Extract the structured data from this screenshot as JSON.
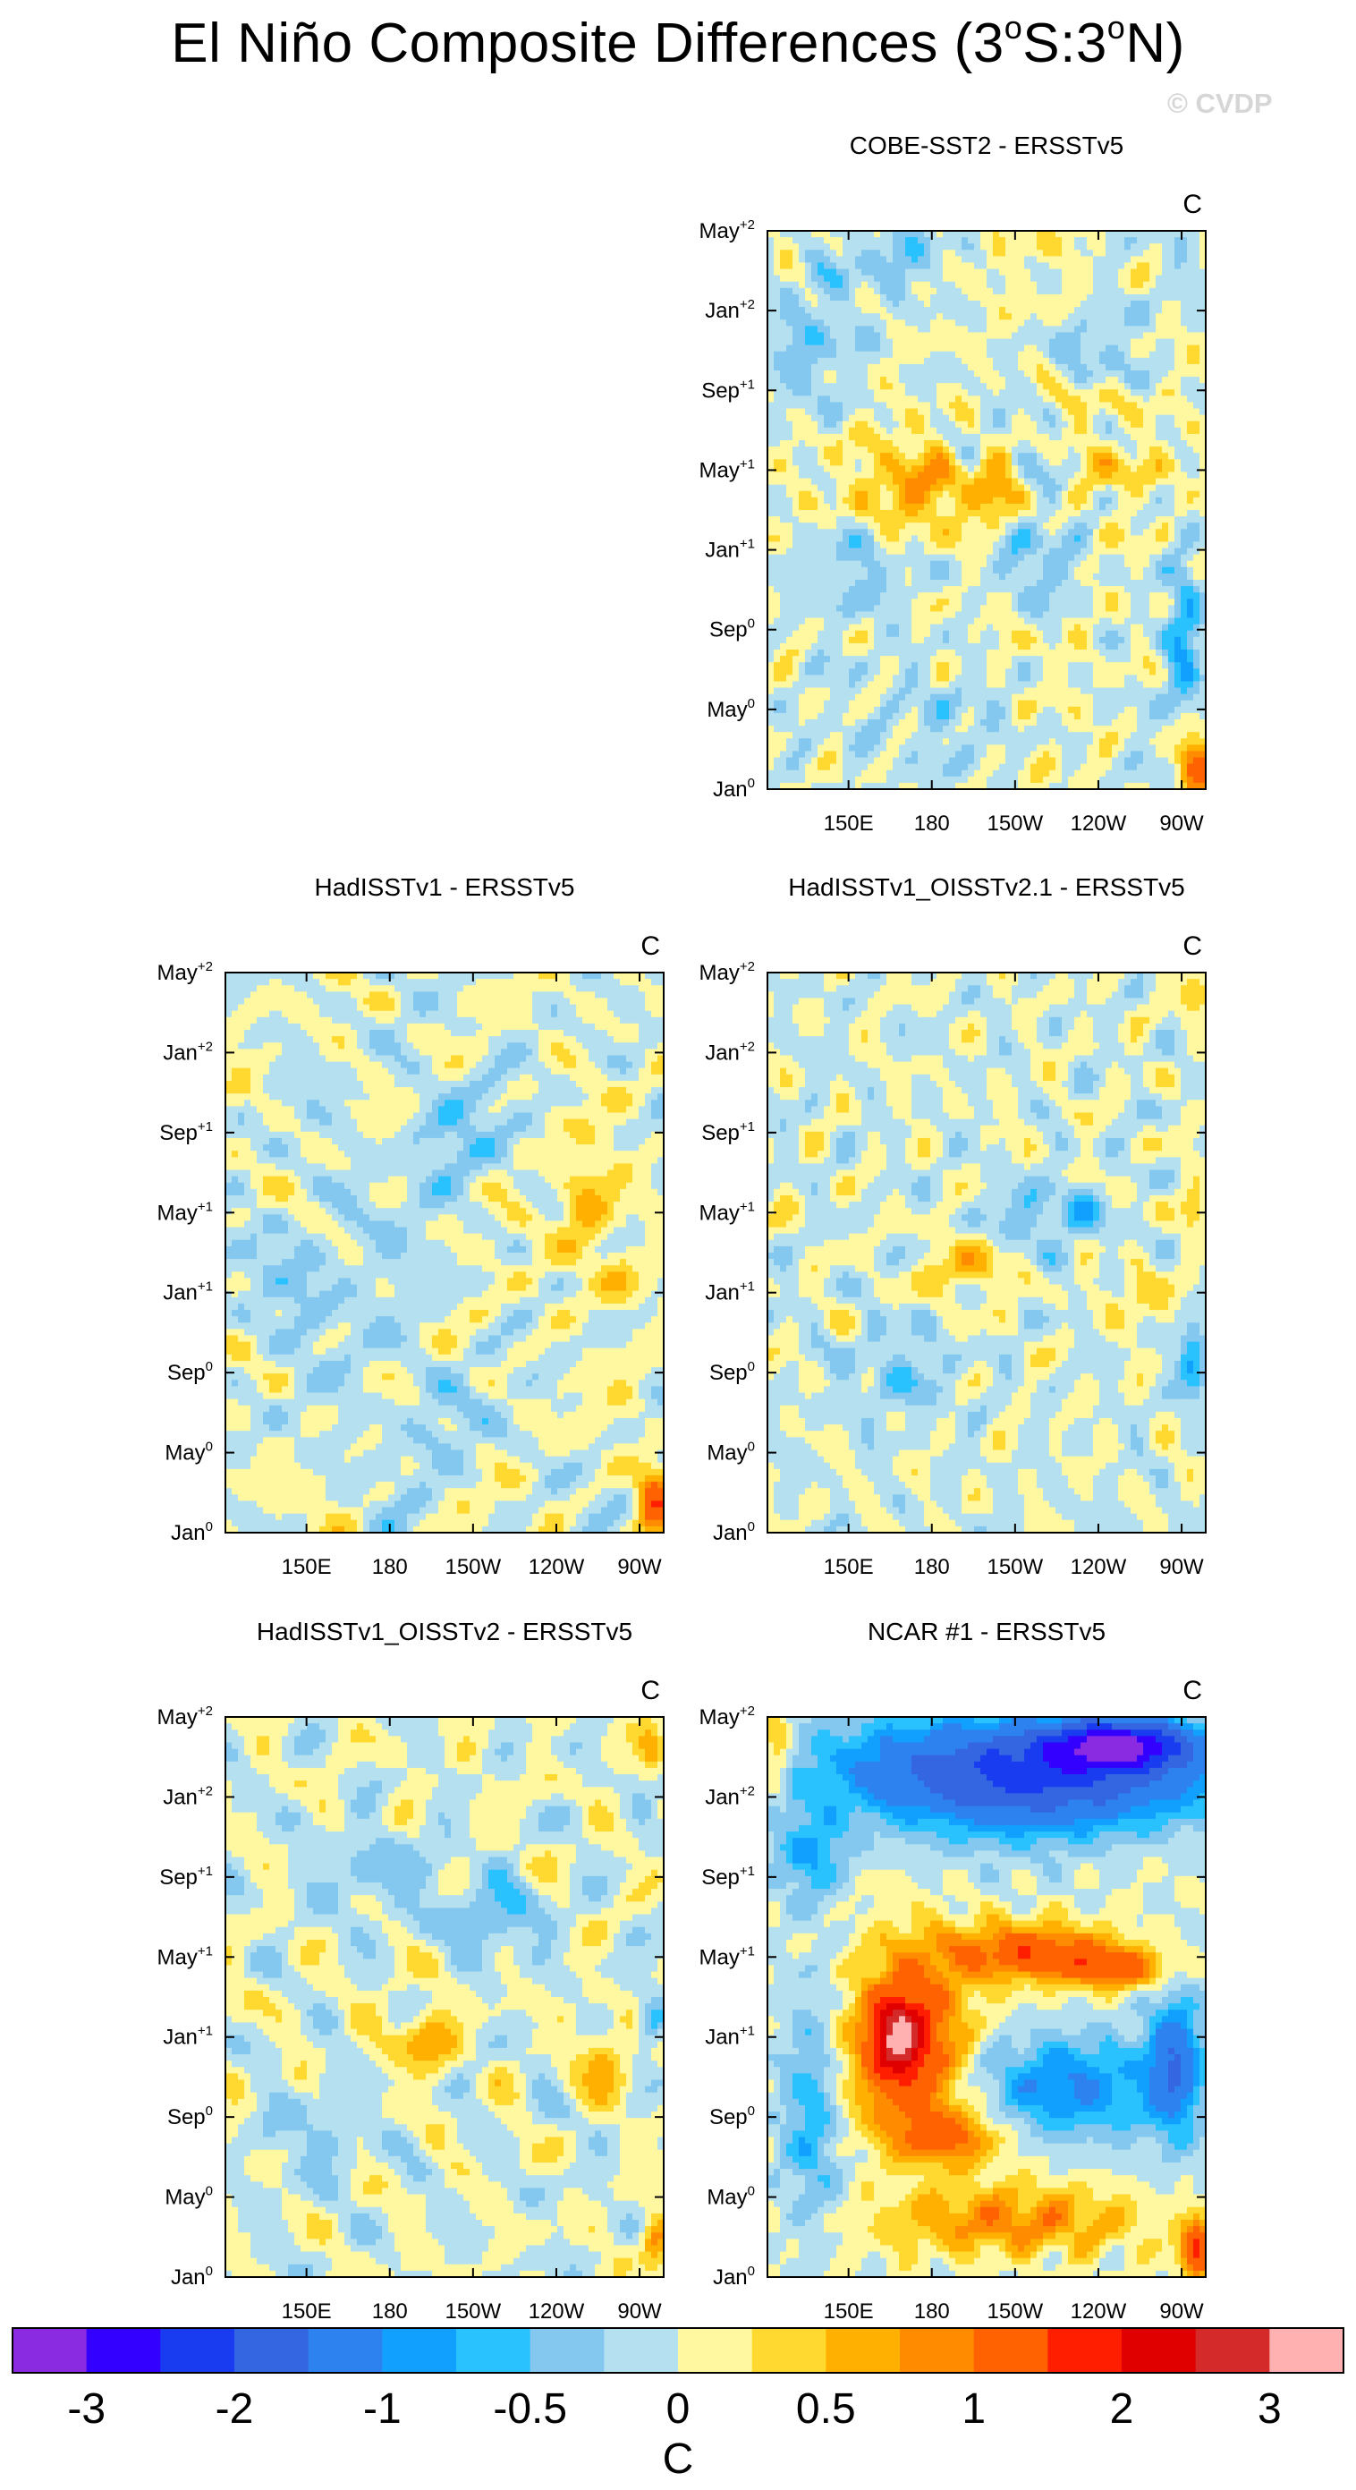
{
  "figure": {
    "title_prefix": "El Niño Composite Differences (3",
    "title_sup_1": "o",
    "title_mid": "S:3",
    "title_sup_2": "o",
    "title_suffix": "N)",
    "watermark": "© CVDP"
  },
  "colorbar": {
    "unit": "C",
    "colors": [
      "#8a2be2",
      "#3300ff",
      "#1a3cf0",
      "#3366e0",
      "#2d82f0",
      "#12a0ff",
      "#29c2ff",
      "#85c8ef",
      "#b5e0f0",
      "#fff8a0",
      "#ffd830",
      "#ffb000",
      "#ff8c00",
      "#ff6200",
      "#ff1f00",
      "#e00000",
      "#d42a2a",
      "#ffb0b0"
    ],
    "labels": [
      "-3",
      "-2",
      "-1",
      "-0.5",
      "0",
      "0.5",
      "1",
      "2",
      "3"
    ]
  },
  "chart_data": [
    {
      "type": "heatmap",
      "title": "COBE-SST2 - ERSSTv5",
      "unit": "C",
      "xticks": [
        "150E",
        "180",
        "150W",
        "120W",
        "90W"
      ],
      "yticks": [
        {
          "base": "Jan",
          "sup": "0"
        },
        {
          "base": "May",
          "sup": "0"
        },
        {
          "base": "Sep",
          "sup": "0"
        },
        {
          "base": "Jan",
          "sup": "+1"
        },
        {
          "base": "May",
          "sup": "+1"
        },
        {
          "base": "Sep",
          "sup": "+1"
        },
        {
          "base": "Jan",
          "sup": "+2"
        },
        {
          "base": "May",
          "sup": "+2"
        }
      ],
      "xlim": [
        "130E",
        "80W"
      ],
      "ylim": [
        "Jan0",
        "May+2"
      ],
      "blobs": [
        {
          "x": 0.35,
          "y": 0.46,
          "rx": 0.12,
          "ry": 0.08,
          "v": 0.7
        },
        {
          "x": 0.52,
          "y": 0.47,
          "rx": 0.05,
          "ry": 0.05,
          "v": 0.8
        },
        {
          "x": 0.78,
          "y": 0.42,
          "rx": 0.07,
          "ry": 0.04,
          "v": 0.5
        },
        {
          "x": 0.72,
          "y": 0.3,
          "rx": 0.07,
          "ry": 0.03,
          "v": 0.55
        },
        {
          "x": 0.98,
          "y": 0.96,
          "rx": 0.04,
          "ry": 0.06,
          "v": 1.2
        },
        {
          "x": 0.1,
          "y": 0.22,
          "rx": 0.1,
          "ry": 0.12,
          "v": -0.4
        },
        {
          "x": 0.2,
          "y": 0.6,
          "rx": 0.12,
          "ry": 0.08,
          "v": -0.4
        },
        {
          "x": 0.62,
          "y": 0.6,
          "rx": 0.08,
          "ry": 0.07,
          "v": -0.45
        },
        {
          "x": 0.75,
          "y": 0.22,
          "rx": 0.1,
          "ry": 0.08,
          "v": -0.35
        },
        {
          "x": 0.45,
          "y": 0.88,
          "rx": 0.15,
          "ry": 0.1,
          "v": -0.3
        },
        {
          "x": 0.95,
          "y": 0.7,
          "rx": 0.04,
          "ry": 0.15,
          "v": -0.7
        },
        {
          "x": 0.3,
          "y": 0.05,
          "rx": 0.12,
          "ry": 0.06,
          "v": -0.35
        }
      ],
      "base": {
        "amp": 0.35,
        "seed": 1,
        "bias": 0.02
      }
    },
    {
      "type": "heatmap",
      "title": "HadISSTv1 - ERSSTv5",
      "unit": "C",
      "xticks": [
        "150E",
        "180",
        "150W",
        "120W",
        "90W"
      ],
      "yticks": [
        {
          "base": "Jan",
          "sup": "0"
        },
        {
          "base": "May",
          "sup": "0"
        },
        {
          "base": "Sep",
          "sup": "0"
        },
        {
          "base": "Jan",
          "sup": "+1"
        },
        {
          "base": "May",
          "sup": "+1"
        },
        {
          "base": "Sep",
          "sup": "+1"
        },
        {
          "base": "Jan",
          "sup": "+2"
        },
        {
          "base": "May",
          "sup": "+2"
        }
      ],
      "xlim": [
        "130E",
        "80W"
      ],
      "ylim": [
        "Jan0",
        "May+2"
      ],
      "blobs": [
        {
          "x": 0.82,
          "y": 0.42,
          "rx": 0.06,
          "ry": 0.08,
          "v": 0.75
        },
        {
          "x": 0.9,
          "y": 0.55,
          "rx": 0.05,
          "ry": 0.05,
          "v": 0.6
        },
        {
          "x": 0.98,
          "y": 0.95,
          "rx": 0.04,
          "ry": 0.06,
          "v": 1.3
        },
        {
          "x": 0.2,
          "y": 0.55,
          "rx": 0.15,
          "ry": 0.12,
          "v": -0.35
        },
        {
          "x": 0.5,
          "y": 0.3,
          "rx": 0.12,
          "ry": 0.12,
          "v": -0.35
        },
        {
          "x": 0.45,
          "y": 0.8,
          "rx": 0.1,
          "ry": 0.12,
          "v": -0.3
        }
      ],
      "base": {
        "amp": 0.38,
        "seed": 2,
        "bias": 0.0
      }
    },
    {
      "type": "heatmap",
      "title": "HadISSTv1_OISSTv2.1 - ERSSTv5",
      "unit": "C",
      "xticks": [
        "150E",
        "180",
        "150W",
        "120W",
        "90W"
      ],
      "yticks": [
        {
          "base": "Jan",
          "sup": "0"
        },
        {
          "base": "May",
          "sup": "0"
        },
        {
          "base": "Sep",
          "sup": "0"
        },
        {
          "base": "Jan",
          "sup": "+1"
        },
        {
          "base": "May",
          "sup": "+1"
        },
        {
          "base": "Sep",
          "sup": "+1"
        },
        {
          "base": "Jan",
          "sup": "+2"
        },
        {
          "base": "May",
          "sup": "+2"
        }
      ],
      "xlim": [
        "130E",
        "80W"
      ],
      "ylim": [
        "Jan0",
        "May+2"
      ],
      "blobs": [
        {
          "x": 0.45,
          "y": 0.53,
          "rx": 0.08,
          "ry": 0.05,
          "v": 0.6
        },
        {
          "x": 0.85,
          "y": 0.58,
          "rx": 0.05,
          "ry": 0.04,
          "v": 0.55
        },
        {
          "x": 0.97,
          "y": 0.04,
          "rx": 0.03,
          "ry": 0.04,
          "v": 0.6
        },
        {
          "x": 0.97,
          "y": 0.42,
          "rx": 0.03,
          "ry": 0.05,
          "v": 0.6
        },
        {
          "x": 0.65,
          "y": 0.43,
          "rx": 0.12,
          "ry": 0.05,
          "v": -0.55
        },
        {
          "x": 0.97,
          "y": 0.7,
          "rx": 0.03,
          "ry": 0.06,
          "v": -0.8
        },
        {
          "x": 0.3,
          "y": 0.72,
          "rx": 0.12,
          "ry": 0.08,
          "v": -0.35
        }
      ],
      "base": {
        "amp": 0.38,
        "seed": 3,
        "bias": -0.02
      }
    },
    {
      "type": "heatmap",
      "title": "HadISSTv1_OISSTv2 - ERSSTv5",
      "unit": "C",
      "xticks": [
        "150E",
        "180",
        "150W",
        "120W",
        "90W"
      ],
      "yticks": [
        {
          "base": "Jan",
          "sup": "0"
        },
        {
          "base": "May",
          "sup": "0"
        },
        {
          "base": "Sep",
          "sup": "0"
        },
        {
          "base": "Jan",
          "sup": "+1"
        },
        {
          "base": "May",
          "sup": "+1"
        },
        {
          "base": "Sep",
          "sup": "+1"
        },
        {
          "base": "Jan",
          "sup": "+2"
        },
        {
          "base": "May",
          "sup": "+2"
        }
      ],
      "xlim": [
        "130E",
        "80W"
      ],
      "ylim": [
        "Jan0",
        "May+2"
      ],
      "blobs": [
        {
          "x": 0.45,
          "y": 0.58,
          "rx": 0.07,
          "ry": 0.06,
          "v": 0.65
        },
        {
          "x": 0.87,
          "y": 0.62,
          "rx": 0.05,
          "ry": 0.06,
          "v": 0.7
        },
        {
          "x": 0.97,
          "y": 0.05,
          "rx": 0.03,
          "ry": 0.05,
          "v": 0.6
        },
        {
          "x": 0.98,
          "y": 0.94,
          "rx": 0.03,
          "ry": 0.05,
          "v": 0.9
        },
        {
          "x": 0.62,
          "y": 0.36,
          "rx": 0.1,
          "ry": 0.06,
          "v": -0.55
        },
        {
          "x": 0.97,
          "y": 0.55,
          "rx": 0.03,
          "ry": 0.05,
          "v": -0.75
        },
        {
          "x": 0.35,
          "y": 0.28,
          "rx": 0.15,
          "ry": 0.08,
          "v": -0.35
        },
        {
          "x": 0.2,
          "y": 0.75,
          "rx": 0.12,
          "ry": 0.08,
          "v": -0.3
        }
      ],
      "base": {
        "amp": 0.36,
        "seed": 4,
        "bias": 0.0
      }
    },
    {
      "type": "heatmap",
      "title": "NCAR #1 - ERSSTv5",
      "unit": "C",
      "xticks": [
        "150E",
        "180",
        "150W",
        "120W",
        "90W"
      ],
      "yticks": [
        {
          "base": "Jan",
          "sup": "0"
        },
        {
          "base": "May",
          "sup": "0"
        },
        {
          "base": "Sep",
          "sup": "0"
        },
        {
          "base": "Jan",
          "sup": "+1"
        },
        {
          "base": "May",
          "sup": "+1"
        },
        {
          "base": "Sep",
          "sup": "+1"
        },
        {
          "base": "Jan",
          "sup": "+2"
        },
        {
          "base": "May",
          "sup": "+2"
        }
      ],
      "xlim": [
        "130E",
        "80W"
      ],
      "ylim": [
        "Jan0",
        "May+2"
      ],
      "blobs": [
        {
          "x": 0.6,
          "y": 0.1,
          "rx": 0.42,
          "ry": 0.1,
          "v": -2.2
        },
        {
          "x": 0.8,
          "y": 0.05,
          "rx": 0.15,
          "ry": 0.04,
          "v": -2.3
        },
        {
          "x": 0.32,
          "y": 0.58,
          "rx": 0.13,
          "ry": 0.16,
          "v": 1.6
        },
        {
          "x": 0.3,
          "y": 0.57,
          "rx": 0.05,
          "ry": 0.06,
          "v": 2.0
        },
        {
          "x": 0.6,
          "y": 0.42,
          "rx": 0.2,
          "ry": 0.05,
          "v": 1.3
        },
        {
          "x": 0.8,
          "y": 0.45,
          "rx": 0.12,
          "ry": 0.035,
          "v": 1.1
        },
        {
          "x": 0.42,
          "y": 0.75,
          "rx": 0.12,
          "ry": 0.05,
          "v": 1.0
        },
        {
          "x": 0.55,
          "y": 0.9,
          "rx": 0.3,
          "ry": 0.06,
          "v": 0.85
        },
        {
          "x": 0.98,
          "y": 0.95,
          "rx": 0.04,
          "ry": 0.05,
          "v": 1.6
        },
        {
          "x": 0.7,
          "y": 0.66,
          "rx": 0.22,
          "ry": 0.09,
          "v": -1.0
        },
        {
          "x": 0.93,
          "y": 0.62,
          "rx": 0.06,
          "ry": 0.12,
          "v": -1.4
        },
        {
          "x": 0.1,
          "y": 0.7,
          "rx": 0.07,
          "ry": 0.2,
          "v": -0.7
        },
        {
          "x": 0.1,
          "y": 0.25,
          "rx": 0.08,
          "ry": 0.08,
          "v": -0.8
        },
        {
          "x": 0.02,
          "y": 0.05,
          "rx": 0.03,
          "ry": 0.08,
          "v": 0.7
        }
      ],
      "base": {
        "amp": 0.25,
        "seed": 5,
        "bias": 0.0
      }
    }
  ]
}
